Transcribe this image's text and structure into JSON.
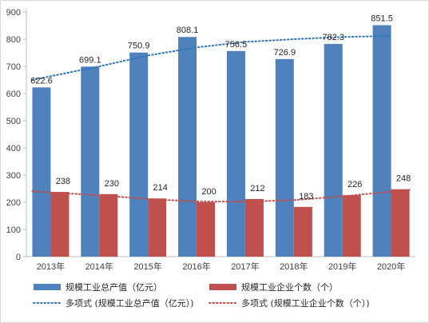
{
  "chart_data": {
    "type": "bar",
    "categories": [
      "2013年",
      "2014年",
      "2015年",
      "2016年",
      "2017年",
      "2018年",
      "2019年",
      "2020年"
    ],
    "series": [
      {
        "name": "规模工业总产值（亿元）",
        "values": [
          622.6,
          699.1,
          750.9,
          808.1,
          756.5,
          726.9,
          782.3,
          851.5
        ],
        "color": "#4f81bd"
      },
      {
        "name": "规模工业企业个数（个）",
        "values": [
          238,
          230,
          214,
          200,
          212,
          183,
          226,
          248
        ],
        "color": "#c0504d"
      }
    ],
    "trendlines": [
      {
        "name": "多项式 (规模工业总产值（亿元）)",
        "type": "polynomial",
        "style": "dotted",
        "color": "#2e75b6",
        "values": [
          650,
          700,
          740,
          770,
          790,
          800,
          808,
          812
        ]
      },
      {
        "name": "多项式 (规模工业企业个数（个）)",
        "type": "polynomial",
        "style": "dotted",
        "color": "#c0504d",
        "values": [
          240,
          226,
          212,
          203,
          202,
          208,
          222,
          246
        ]
      }
    ],
    "ylim": [
      0,
      900
    ],
    "yticks": [
      "0",
      "100",
      "200",
      "300",
      "400",
      "500",
      "600",
      "700",
      "800",
      "900"
    ],
    "grid": false,
    "legend": "bottom",
    "title": "",
    "xlabel": "",
    "ylabel": ""
  }
}
